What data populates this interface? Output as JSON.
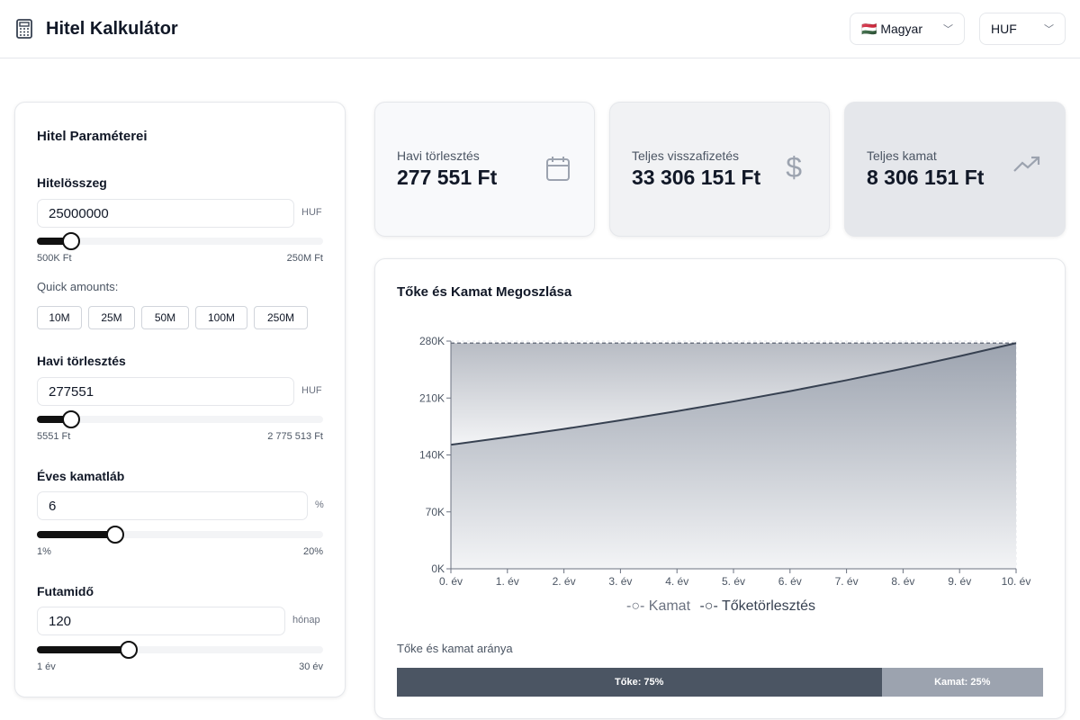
{
  "header": {
    "title": "Hitel Kalkulátor",
    "icon": "calculator-icon",
    "language": "🇭🇺 Magyar",
    "currency": "HUF"
  },
  "params": {
    "title": "Hitel Paraméterei",
    "amount": {
      "label": "Hitelösszeg",
      "value": "25000000",
      "unit": "HUF",
      "min": "500K Ft",
      "max": "250M Ft",
      "slider_fraction": 0.12
    },
    "quick_label": "Quick amounts:",
    "quick": [
      "10M",
      "25M",
      "50M",
      "100M",
      "250M"
    ],
    "monthly": {
      "label": "Havi törlesztés",
      "value": "277551",
      "unit": "HUF",
      "min": "5551 Ft",
      "max": "2 775 513 Ft",
      "slider_fraction": 0.12
    },
    "rate": {
      "label": "Éves kamatláb",
      "value": "6",
      "unit": "%",
      "min": "1%",
      "max": "20%",
      "slider_fraction": 0.28
    },
    "term": {
      "label": "Futamidő",
      "value": "120",
      "unit": "hónap",
      "min": "1 év",
      "max": "30 év",
      "slider_fraction": 0.32
    }
  },
  "stats": [
    {
      "label": "Havi törlesztés",
      "value": "277 551 Ft",
      "icon": "calendar-icon"
    },
    {
      "label": "Teljes visszafizetés",
      "value": "33 306 151 Ft",
      "icon": "dollar-icon"
    },
    {
      "label": "Teljes kamat",
      "value": "8 306 151 Ft",
      "icon": "trending-up-icon"
    }
  ],
  "chart_data": {
    "type": "area",
    "title": "Tőke és Kamat Megoszlása",
    "categories": [
      "0. év",
      "1. év",
      "2. év",
      "3. év",
      "4. év",
      "5. év",
      "6. év",
      "7. év",
      "8. év",
      "9. év",
      "10. év"
    ],
    "series": [
      {
        "name": "Tőketörlesztés",
        "values": [
          152551,
          161960,
          171950,
          182556,
          193816,
          205770,
          218462,
          231937,
          246243,
          261431,
          277548
        ],
        "color": "#374151"
      },
      {
        "name": "Kamat",
        "values": [
          125000,
          115591,
          105601,
          94995,
          83735,
          71781,
          59089,
          45614,
          31308,
          16120,
          3
        ],
        "color": "#9ca3af"
      }
    ],
    "stacked": true,
    "ylim": [
      0,
      280000
    ],
    "yticks": [
      "0K",
      "70K",
      "140K",
      "210K",
      "280K"
    ],
    "grid": true,
    "legend": "bottom"
  },
  "ratio": {
    "title": "Tőke és kamat aránya",
    "principal_label": "Tőke: 75%",
    "interest_label": "Kamat: 25%",
    "principal_pct": 75,
    "colors": {
      "principal": "#4b5563",
      "interest": "#9ca3af"
    }
  }
}
